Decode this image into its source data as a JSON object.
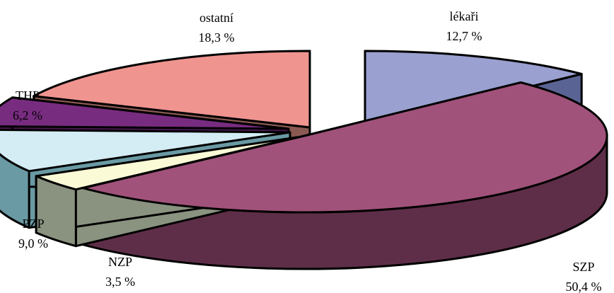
{
  "chart_data": {
    "type": "pie",
    "style": "3d-exploded",
    "title": "",
    "slices": [
      {
        "label": "lékaři",
        "value": 12.7,
        "value_text": "12,7 %",
        "color": "#9aa0d0",
        "side_color": "#5a6494"
      },
      {
        "label": "SZP",
        "value": 50.4,
        "value_text": "50,4 %",
        "color": "#a0527a",
        "side_color": "#5e2e48"
      },
      {
        "label": "NZP",
        "value": 3.5,
        "value_text": "3,5 %",
        "color": "#fafad6",
        "side_color": "#8a9280"
      },
      {
        "label": "PZP",
        "value": 9.0,
        "value_text": "9,0 %",
        "color": "#d4ecf4",
        "side_color": "#6a9aa4"
      },
      {
        "label": "THP",
        "value": 6.2,
        "value_text": "6,2 %",
        "color": "#782c80",
        "side_color": "#4a1850"
      },
      {
        "label": "ostatní",
        "value": 18.3,
        "value_text": "18,3 %",
        "color": "#f09490",
        "side_color": "#8a5a52"
      }
    ]
  }
}
